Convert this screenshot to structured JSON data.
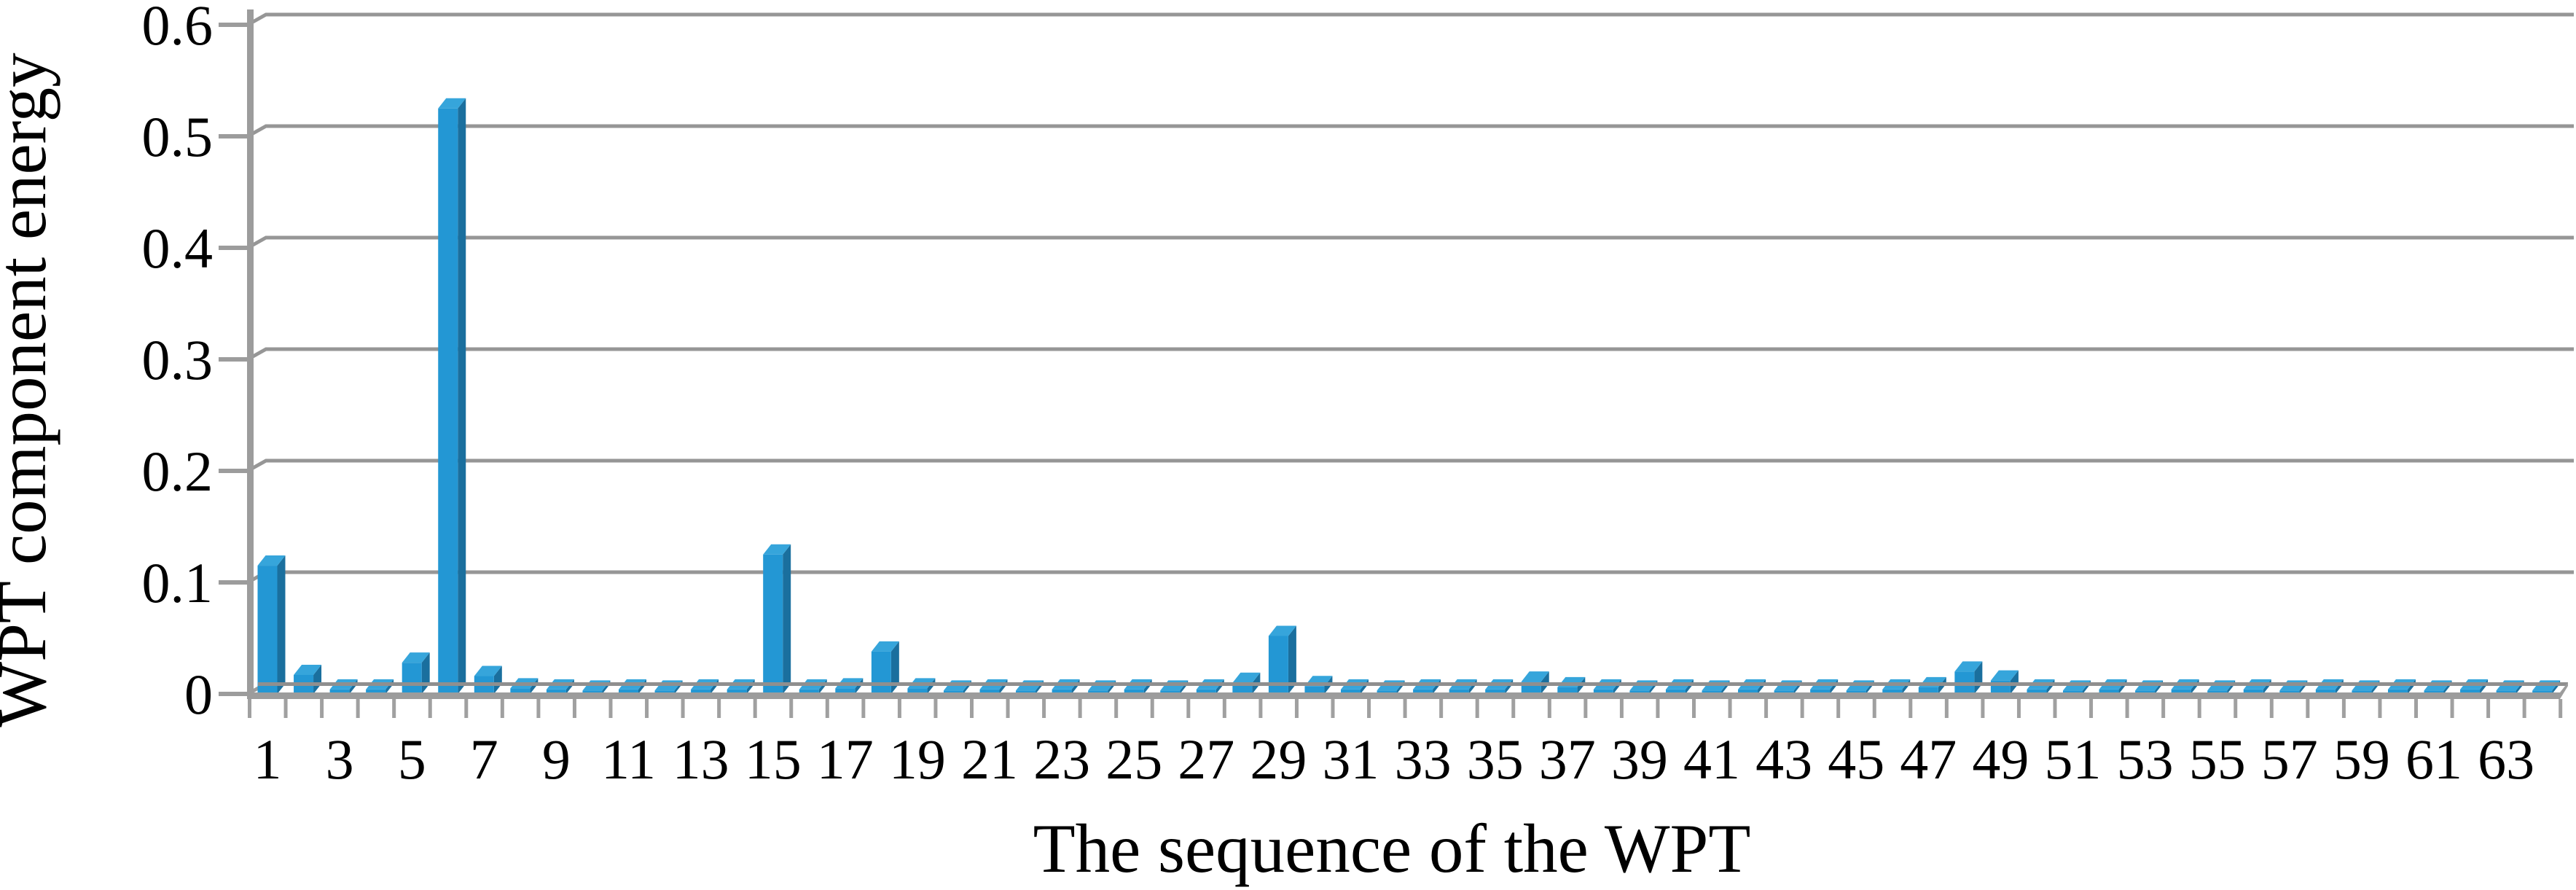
{
  "figure": {
    "background": "#ffffff"
  },
  "chart_data": {
    "type": "bar",
    "style": "3d-column-effect",
    "title": "",
    "xlabel": "The sequence of the WPT",
    "ylabel": "WPT component energy",
    "x": [
      1,
      2,
      3,
      4,
      5,
      6,
      7,
      8,
      9,
      10,
      11,
      12,
      13,
      14,
      15,
      16,
      17,
      18,
      19,
      20,
      21,
      22,
      23,
      24,
      25,
      26,
      27,
      28,
      29,
      30,
      31,
      32,
      33,
      34,
      35,
      36,
      37,
      38,
      39,
      40,
      41,
      42,
      43,
      44,
      45,
      46,
      47,
      48,
      49,
      50,
      51,
      52,
      53,
      54,
      55,
      56,
      57,
      58,
      59,
      60,
      61,
      62,
      63,
      64
    ],
    "values": [
      0.115,
      0.017,
      0.004,
      0.004,
      0.028,
      0.525,
      0.016,
      0.005,
      0.004,
      0.003,
      0.004,
      0.003,
      0.004,
      0.004,
      0.125,
      0.004,
      0.005,
      0.038,
      0.005,
      0.003,
      0.004,
      0.003,
      0.004,
      0.003,
      0.004,
      0.003,
      0.004,
      0.01,
      0.052,
      0.007,
      0.004,
      0.003,
      0.004,
      0.004,
      0.004,
      0.011,
      0.006,
      0.004,
      0.003,
      0.004,
      0.003,
      0.004,
      0.003,
      0.004,
      0.003,
      0.004,
      0.006,
      0.02,
      0.012,
      0.004,
      0.003,
      0.004,
      0.003,
      0.004,
      0.003,
      0.004,
      0.003,
      0.004,
      0.003,
      0.004,
      0.003,
      0.004,
      0.003,
      0.003
    ],
    "x_tick_labels": [
      "1",
      "3",
      "5",
      "7",
      "9",
      "11",
      "13",
      "15",
      "17",
      "19",
      "21",
      "23",
      "25",
      "27",
      "29",
      "31",
      "33",
      "35",
      "37",
      "39",
      "41",
      "43",
      "45",
      "47",
      "49",
      "51",
      "53",
      "55",
      "57",
      "59",
      "61",
      "63"
    ],
    "x_tick_label_positions": [
      1,
      3,
      5,
      7,
      9,
      11,
      13,
      15,
      17,
      19,
      21,
      23,
      25,
      27,
      29,
      31,
      33,
      35,
      37,
      39,
      41,
      43,
      45,
      47,
      49,
      51,
      53,
      55,
      57,
      59,
      61,
      63
    ],
    "y_ticks": [
      0,
      0.1,
      0.2,
      0.3,
      0.4,
      0.5,
      0.6
    ],
    "y_tick_labels": [
      "0",
      "0.1",
      "0.2",
      "0.3",
      "0.4",
      "0.5",
      "0.6"
    ],
    "ylim": [
      0,
      0.6
    ],
    "grid": true,
    "legend": "none",
    "colors": {
      "bar_front": "#2397d4",
      "bar_top": "#36a5db",
      "bar_side": "#1a6f9e",
      "gridline": "#969696",
      "axis": "#9c9c9c",
      "floor_band": "#9c9c9c",
      "floor_back_edge": "#8f8f8f",
      "tick": "#a0a0a0",
      "text": "#000000"
    }
  }
}
